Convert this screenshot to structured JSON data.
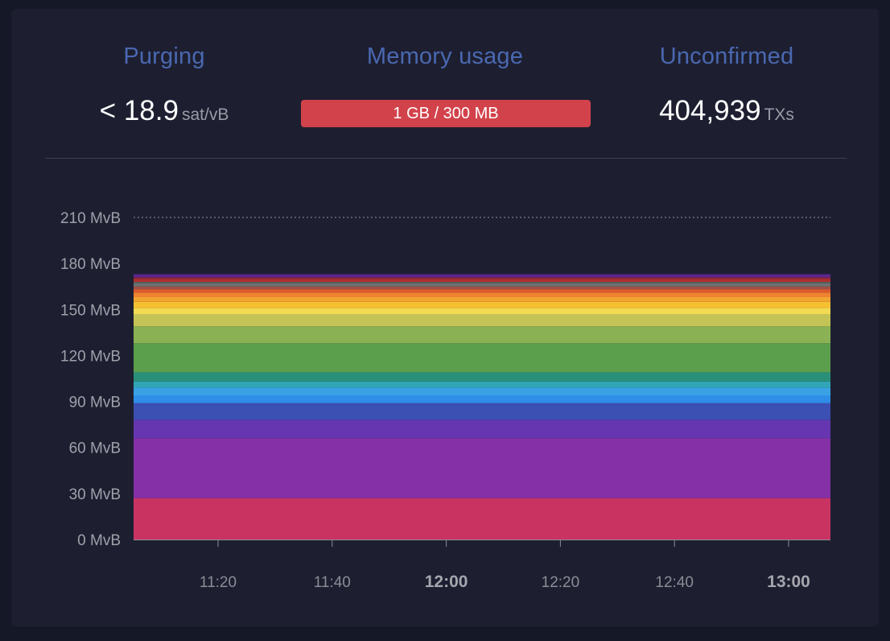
{
  "stats": {
    "purging": {
      "label": "Purging",
      "value": "< 18.9",
      "unit": "sat/vB"
    },
    "memory": {
      "label": "Memory usage",
      "bar_text": "1 GB / 300 MB",
      "bar_color": "#d2424b"
    },
    "unconfirmed": {
      "label": "Unconfirmed",
      "value": "404,939",
      "unit": "TXs"
    }
  },
  "chart_data": {
    "type": "area",
    "stacked": true,
    "x": [
      "11:05",
      "13:10"
    ],
    "xticks": [
      {
        "label": "11:20",
        "bold": false
      },
      {
        "label": "11:40",
        "bold": false
      },
      {
        "label": "12:00",
        "bold": true
      },
      {
        "label": "12:20",
        "bold": false
      },
      {
        "label": "12:40",
        "bold": false
      },
      {
        "label": "13:00",
        "bold": true
      }
    ],
    "yticks": [
      "0 MvB",
      "30 MvB",
      "60 MvB",
      "90 MvB",
      "120 MvB",
      "150 MvB",
      "180 MvB",
      "210 MvB"
    ],
    "ylim": [
      0,
      210
    ],
    "unit": "MvB",
    "series": [
      {
        "color": "#c93362",
        "values": [
          27,
          27
        ]
      },
      {
        "color": "#8530a6",
        "values": [
          39,
          39
        ]
      },
      {
        "color": "#6636b0",
        "values": [
          12,
          12
        ]
      },
      {
        "color": "#3c4fb2",
        "values": [
          11,
          11
        ]
      },
      {
        "color": "#2f8ee7",
        "values": [
          5,
          5
        ]
      },
      {
        "color": "#3aa2e4",
        "values": [
          5,
          5
        ]
      },
      {
        "color": "#31a5b6",
        "values": [
          4,
          4
        ]
      },
      {
        "color": "#2a8f79",
        "values": [
          6,
          6
        ]
      },
      {
        "color": "#5b9f4c",
        "values": [
          19,
          19
        ]
      },
      {
        "color": "#8ab254",
        "values": [
          11,
          11
        ]
      },
      {
        "color": "#c3c455",
        "values": [
          8,
          8
        ]
      },
      {
        "color": "#f2da53",
        "values": [
          4,
          4
        ]
      },
      {
        "color": "#f6c030",
        "values": [
          4,
          4
        ]
      },
      {
        "color": "#f2a431",
        "values": [
          3,
          3
        ]
      },
      {
        "color": "#ee8331",
        "values": [
          3,
          3
        ]
      },
      {
        "color": "#df5a2c",
        "values": [
          2,
          2
        ]
      },
      {
        "color": "#9e5145",
        "values": [
          2,
          2
        ]
      },
      {
        "color": "#6e7271",
        "values": [
          2,
          2
        ]
      },
      {
        "color": "#5b5e5e",
        "values": [
          1,
          1
        ]
      },
      {
        "color": "#b22f2f",
        "values": [
          2,
          2
        ]
      },
      {
        "color": "#8a2342",
        "values": [
          1,
          1
        ]
      },
      {
        "color": "#5a268f",
        "values": [
          2,
          2
        ]
      }
    ],
    "grid_line_at": 210
  }
}
